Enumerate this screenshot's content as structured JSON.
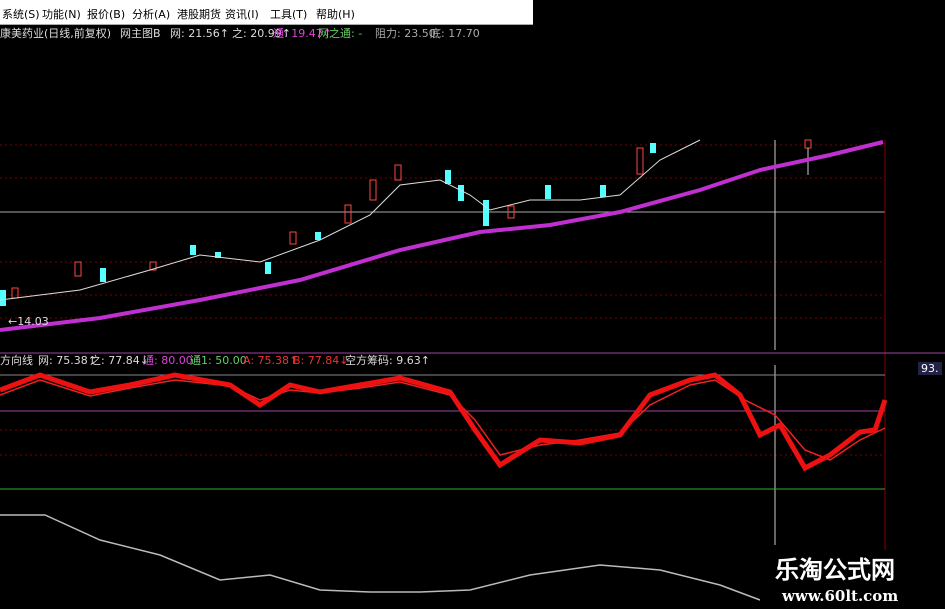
{
  "menu": [
    "系统(S)",
    "功能(N)",
    "报价(B)",
    "分析(A)",
    "港股期货",
    "资讯(I)",
    "工具(T)",
    "帮助(H)"
  ],
  "main_info": {
    "stock": "康美药业(日线,前复权)",
    "formula": "网主图B",
    "wang": "网: 21.56↑",
    "zhi": "之: 20.99↑",
    "tong": "通: 19.47↑",
    "wzt": "网之通: -",
    "resist": "阻力: 23.50",
    "bottom": "底: 17.70"
  },
  "price_label": "←14.03",
  "indicator_info": {
    "name": "方向线",
    "wang": "网: 75.38↑",
    "zhi": "之: 77.84↓",
    "tong": "通: 80.00",
    "tong1": "通1: 50.00",
    "a": "A: 75.38↑",
    "b": "B: 77.84↓",
    "chips": "空方筹码: 9.63↑"
  },
  "axis_value": "93.",
  "watermark": {
    "title": "乐淘公式网",
    "url": "www.60lt.com"
  }
}
